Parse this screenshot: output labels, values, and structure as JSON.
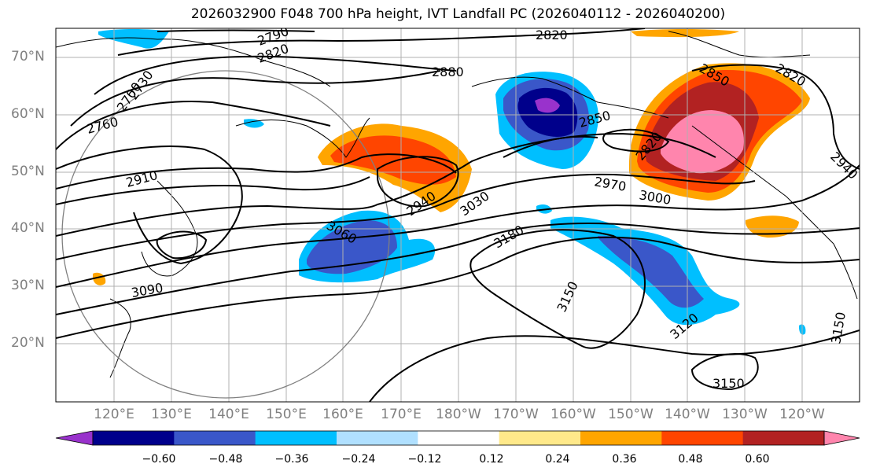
{
  "title": "2026032900 F048 700 hPa height, IVT Landfall PC (2026040112 - 2026040200)",
  "map": {
    "lat_labels": [
      "70°N",
      "60°N",
      "50°N",
      "40°N",
      "30°N",
      "20°N"
    ],
    "lon_labels": [
      "120°E",
      "130°E",
      "140°E",
      "150°E",
      "160°E",
      "170°E",
      "180°W",
      "170°W",
      "160°W",
      "150°W",
      "140°W",
      "130°W",
      "120°W"
    ],
    "contour_labels": [
      "2820",
      "2790",
      "2820",
      "2700",
      "2730",
      "2760",
      "2880",
      "2850",
      "2820",
      "2850",
      "2820",
      "2940",
      "2910",
      "2940",
      "3030",
      "2970",
      "3000",
      "3060",
      "3180",
      "3090",
      "3150",
      "3120",
      "3150",
      "3150"
    ],
    "land_color": "#ffffff",
    "ocean_color": "#ffffff",
    "grid_color": "#b0b0b0"
  },
  "colorbar": {
    "colors": [
      "#9932CC",
      "#00008B",
      "#3A57C9",
      "#00BFFF",
      "#B0E0FF",
      "#FFFFFF",
      "#FFE98A",
      "#FFA500",
      "#FF4500",
      "#B22222",
      "#FF85AD"
    ],
    "ticks": [
      "−0.60",
      "−0.48",
      "−0.36",
      "−0.24",
      "−0.12",
      "0.12",
      "0.24",
      "0.36",
      "0.48",
      "0.60"
    ],
    "extend": "both"
  }
}
